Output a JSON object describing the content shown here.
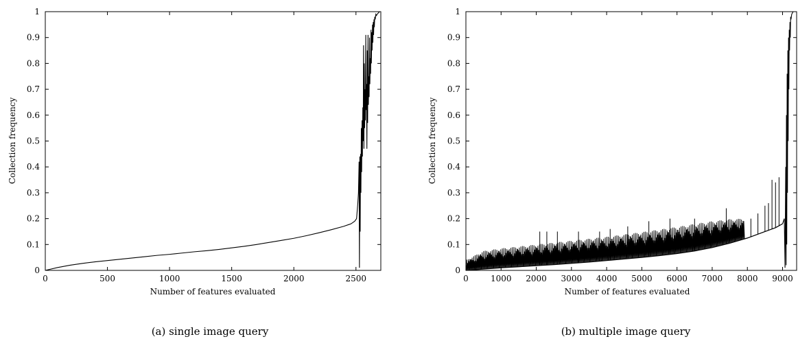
{
  "chart_data": [
    {
      "type": "line",
      "caption": "(a) single image query",
      "xlabel": "Number of features evaluated",
      "ylabel": "Collection frequency",
      "xlim": [
        0,
        2700
      ],
      "ylim": [
        0,
        1
      ],
      "xticks": [
        0,
        500,
        1000,
        1500,
        2000,
        2500
      ],
      "yticks": [
        0,
        0.1,
        0.2,
        0.3,
        0.4,
        0.5,
        0.6,
        0.7,
        0.8,
        0.9,
        1
      ],
      "grid": false,
      "series": [
        {
          "x": [
            0,
            100,
            200,
            300,
            400,
            500,
            600,
            700,
            800,
            900,
            1000,
            1100,
            1200,
            1300,
            1400,
            1500,
            1600,
            1700,
            1800,
            1900,
            2000,
            2100,
            2200,
            2300,
            2400,
            2460,
            2490,
            2505,
            2515,
            2520,
            2525,
            2528,
            2531,
            2534,
            2537,
            2540,
            2543,
            2546,
            2549,
            2552,
            2555,
            2558,
            2561,
            2564,
            2567,
            2570,
            2573,
            2576,
            2579,
            2582,
            2585,
            2588,
            2591,
            2594,
            2597,
            2600,
            2603,
            2606,
            2609,
            2612,
            2615,
            2618,
            2621,
            2624,
            2627,
            2630,
            2633,
            2636,
            2639,
            2642,
            2645,
            2648,
            2651,
            2655,
            2660,
            2665,
            2670,
            2680,
            2690,
            2700
          ],
          "y": [
            0,
            0.011,
            0.02,
            0.027,
            0.033,
            0.038,
            0.043,
            0.048,
            0.053,
            0.058,
            0.062,
            0.067,
            0.072,
            0.076,
            0.081,
            0.087,
            0.093,
            0.1,
            0.108,
            0.116,
            0.124,
            0.134,
            0.145,
            0.157,
            0.17,
            0.18,
            0.19,
            0.2,
            0.26,
            0.3,
            0.42,
            0.01,
            0.44,
            0.15,
            0.45,
            0.3,
            0.55,
            0.38,
            0.58,
            0.44,
            0.63,
            0.5,
            0.87,
            0.47,
            0.8,
            0.55,
            0.7,
            0.58,
            0.91,
            0.62,
            0.72,
            0.47,
            0.85,
            0.57,
            0.91,
            0.64,
            0.75,
            0.67,
            0.9,
            0.72,
            0.82,
            0.76,
            0.93,
            0.8,
            0.92,
            0.85,
            0.95,
            0.88,
            0.96,
            0.91,
            0.97,
            0.94,
            0.98,
            0.97,
            0.99,
            0.985,
            0.99,
            0.995,
            1,
            1
          ]
        }
      ]
    },
    {
      "type": "line",
      "caption": "(b) multiple image query",
      "xlabel": "Number of features evaluated",
      "ylabel": "Collection frequency",
      "xlim": [
        0,
        9400
      ],
      "ylim": [
        0,
        1
      ],
      "xticks": [
        0,
        1000,
        2000,
        3000,
        4000,
        5000,
        6000,
        7000,
        8000,
        9000
      ],
      "yticks": [
        0,
        0.1,
        0.2,
        0.3,
        0.4,
        0.5,
        0.6,
        0.7,
        0.8,
        0.9,
        1
      ],
      "grid": false,
      "series": [
        {
          "baseline_x": [
            0,
            500,
            1000,
            1500,
            2000,
            2500,
            3000,
            3500,
            4000,
            4500,
            5000,
            5500,
            6000,
            6500,
            7000,
            7500,
            8000,
            8500,
            8800,
            9000
          ],
          "baseline_y": [
            0,
            0.005,
            0.01,
            0.014,
            0.018,
            0.022,
            0.027,
            0.032,
            0.038,
            0.044,
            0.05,
            0.057,
            0.065,
            0.075,
            0.088,
            0.105,
            0.125,
            0.15,
            0.165,
            0.18
          ],
          "upper_x": [
            0,
            500,
            1000,
            2000,
            3000,
            4000,
            5000,
            6000,
            6500,
            7000,
            7500,
            7900
          ],
          "upper_y": [
            0.04,
            0.075,
            0.085,
            0.1,
            0.115,
            0.13,
            0.148,
            0.168,
            0.18,
            0.19,
            0.198,
            0.2
          ],
          "spike_tips_x": [
            2100,
            2300,
            2600,
            3200,
            3800,
            4100,
            4600,
            5200,
            5800,
            6500,
            7400,
            8100,
            8300,
            8500,
            8600,
            8700,
            8800,
            8900
          ],
          "spike_tips_y": [
            0.15,
            0.15,
            0.15,
            0.15,
            0.15,
            0.16,
            0.17,
            0.19,
            0.2,
            0.2,
            0.24,
            0.2,
            0.22,
            0.25,
            0.26,
            0.35,
            0.34,
            0.36
          ],
          "tail_x": [
            9050,
            9070,
            9090,
            9100,
            9110,
            9120,
            9130,
            9140,
            9150,
            9160,
            9170,
            9180,
            9190,
            9200,
            9210,
            9220,
            9230,
            9240,
            9260,
            9300
          ],
          "tail_y": [
            0.2,
            0.01,
            0.4,
            0.02,
            0.6,
            0.1,
            0.76,
            0.3,
            0.85,
            0.5,
            0.9,
            0.7,
            0.93,
            0.85,
            0.96,
            0.9,
            0.98,
            0.97,
            0.99,
            1
          ]
        }
      ]
    }
  ]
}
